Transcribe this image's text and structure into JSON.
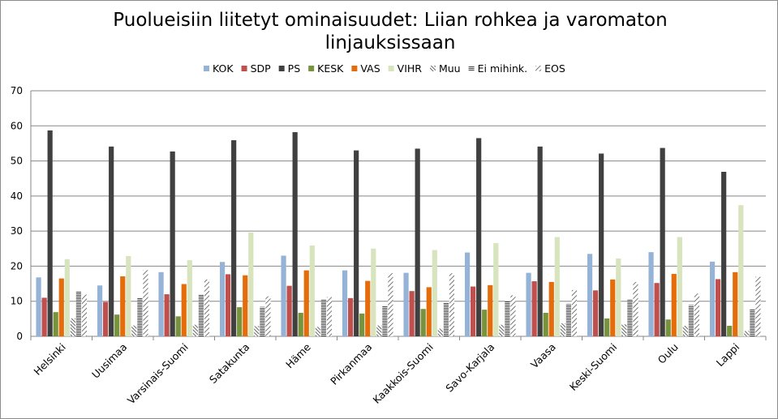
{
  "chart_data": {
    "type": "bar",
    "title": "Puolueisiin liitetyt ominaisuudet: Liian rohkea ja varomaton linjauksissaan",
    "xlabel": "",
    "ylabel": "",
    "ylim": [
      0,
      70
    ],
    "yticks": [
      0,
      10,
      20,
      30,
      40,
      50,
      60,
      70
    ],
    "grid": true,
    "legend_position": "top",
    "categories": [
      "Helsinki",
      "Uusimaa",
      "Varsinais-Suomi",
      "Satakunta",
      "Häme",
      "Pirkanmaa",
      "Kaakkois-Suomi",
      "Savo-Karjala",
      "Vaasa",
      "Keski-Suomi",
      "Oulu",
      "Lappi"
    ],
    "series": [
      {
        "name": "KOK",
        "color": "#95b3d7",
        "pattern": "solid",
        "values": [
          16.8,
          14.5,
          18.3,
          21.2,
          23.0,
          18.8,
          18.1,
          23.9,
          18.1,
          23.5,
          24.0,
          21.3
        ]
      },
      {
        "name": "SDP",
        "color": "#c0504d",
        "pattern": "solid",
        "values": [
          11.0,
          9.8,
          12.0,
          17.7,
          14.4,
          10.9,
          12.9,
          14.2,
          15.7,
          13.1,
          15.2,
          16.3
        ]
      },
      {
        "name": "PS",
        "color": "#404040",
        "pattern": "solid",
        "values": [
          58.7,
          54.1,
          52.7,
          55.9,
          58.2,
          53.0,
          53.5,
          56.5,
          54.1,
          52.1,
          53.7,
          46.9
        ]
      },
      {
        "name": "KESK",
        "color": "#77933c",
        "pattern": "solid",
        "values": [
          6.9,
          6.2,
          5.7,
          8.3,
          6.7,
          6.5,
          7.8,
          7.6,
          6.7,
          5.1,
          4.8,
          3.0
        ]
      },
      {
        "name": "VAS",
        "color": "#e46c0a",
        "pattern": "solid",
        "values": [
          16.5,
          17.1,
          14.9,
          17.4,
          18.8,
          15.8,
          14.0,
          14.6,
          15.5,
          16.2,
          17.8,
          18.3
        ]
      },
      {
        "name": "VIHR",
        "color": "#d7e4bd",
        "pattern": "solid",
        "values": [
          22.0,
          22.9,
          21.7,
          29.6,
          25.9,
          25.0,
          24.6,
          26.6,
          28.3,
          22.2,
          28.3,
          37.4
        ]
      },
      {
        "name": "Muu",
        "color": "#404040",
        "pattern": "diagonal-dense",
        "values": [
          5.1,
          3.1,
          3.3,
          2.9,
          2.7,
          3.1,
          2.2,
          3.3,
          3.7,
          3.4,
          3.0,
          1.5
        ]
      },
      {
        "name": "Ei mihink.",
        "color": "#404040",
        "pattern": "horizontal",
        "values": [
          12.8,
          10.9,
          12.0,
          8.4,
          10.6,
          8.7,
          9.7,
          10.0,
          9.3,
          10.6,
          8.9,
          7.8
        ]
      },
      {
        "name": "EOS",
        "color": "#404040",
        "pattern": "diagonal-wide",
        "values": [
          11.9,
          18.9,
          16.2,
          11.4,
          11.2,
          18.0,
          18.0,
          11.7,
          13.2,
          15.5,
          12.2,
          17.0
        ]
      }
    ]
  }
}
